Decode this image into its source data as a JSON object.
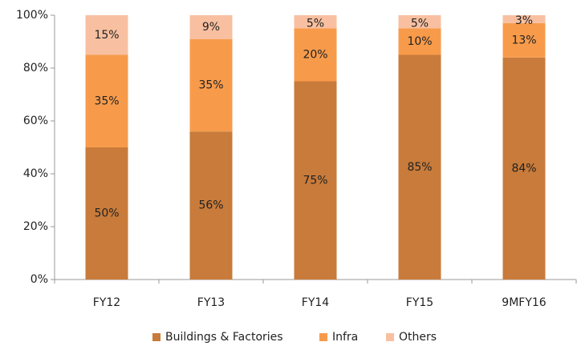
{
  "chart_data": {
    "type": "stacked_bar",
    "categories": [
      "FY12",
      "FY13",
      "FY14",
      "FY15",
      "9MFY16"
    ],
    "series": [
      {
        "name": "Buildings & Factories",
        "color": "#c87b3a",
        "values": [
          50,
          56,
          75,
          85,
          84
        ],
        "value_labels": [
          "50%",
          "56%",
          "75%",
          "85%",
          "84%"
        ]
      },
      {
        "name": "Infra",
        "color": "#f79b4b",
        "values": [
          35,
          35,
          20,
          10,
          13
        ],
        "value_labels": [
          "35%",
          "35%",
          "20%",
          "10%",
          "13%"
        ]
      },
      {
        "name": "Others",
        "color": "#f8c0a0",
        "values": [
          15,
          9,
          5,
          5,
          3
        ],
        "value_labels": [
          "15%",
          "9%",
          "5%",
          "5%",
          "3%"
        ]
      }
    ],
    "ylim": [
      0,
      100
    ],
    "yticks": [
      {
        "value": 0,
        "label": "0%"
      },
      {
        "value": 20,
        "label": "20%"
      },
      {
        "value": 40,
        "label": "40%"
      },
      {
        "value": 60,
        "label": "60%"
      },
      {
        "value": 80,
        "label": "80%"
      },
      {
        "value": 100,
        "label": "100%"
      }
    ],
    "legend": "bottom"
  }
}
